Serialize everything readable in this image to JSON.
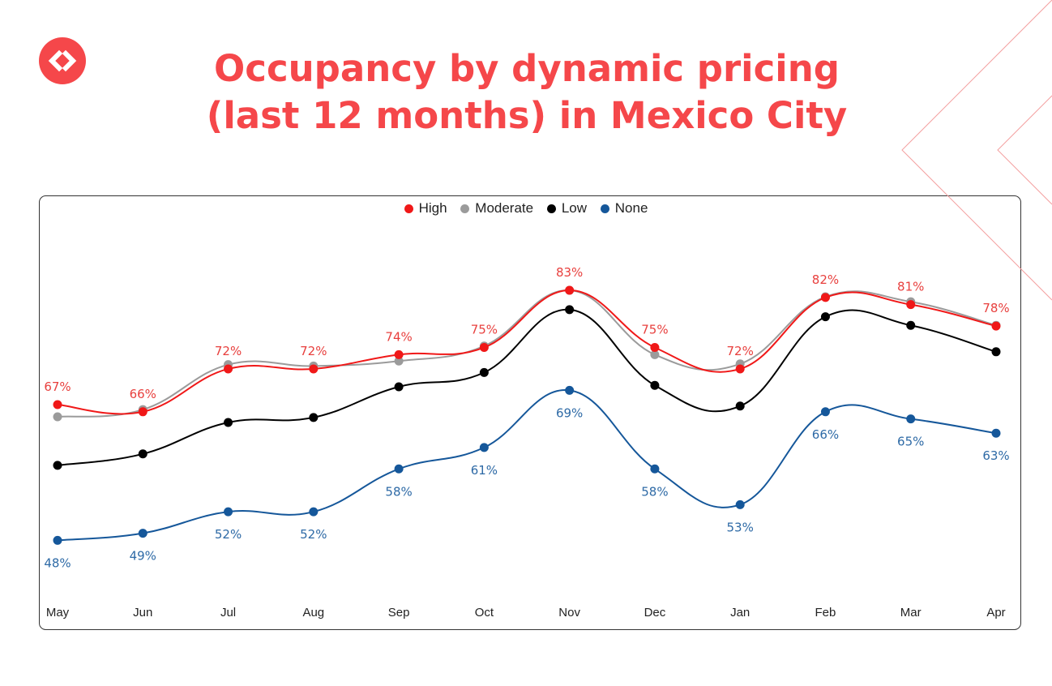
{
  "title": {
    "line1": "Occupancy by dynamic pricing",
    "line2": "(last 12 months) in Mexico City"
  },
  "colors": {
    "accent": "#f5474a",
    "high": "#f01818",
    "moderate": "#9b9b9b",
    "low": "#000000",
    "none": "#15579a",
    "none_label": "#2e6aa6",
    "high_label": "#e8403e"
  },
  "chart_data": {
    "type": "line",
    "title": "Occupancy by dynamic pricing (last 12 months) in Mexico City",
    "xlabel": "",
    "ylabel": "",
    "categories": [
      "May",
      "Jun",
      "Jul",
      "Aug",
      "Sep",
      "Oct",
      "Nov",
      "Dec",
      "Jan",
      "Feb",
      "Mar",
      "Apr"
    ],
    "ylim": [
      40,
      90
    ],
    "grid": false,
    "legend_position": "top-center",
    "series": [
      {
        "name": "High",
        "key": "high",
        "values": [
          67,
          66,
          72,
          72,
          74,
          75,
          83,
          75,
          72,
          82,
          81,
          78
        ],
        "labels": [
          "67%",
          "66%",
          "72%",
          "72%",
          "74%",
          "75%",
          "83%",
          "75%",
          "72%",
          "82%",
          "81%",
          "78%"
        ],
        "label_pos": "above"
      },
      {
        "name": "Moderate",
        "key": "moderate",
        "values": [
          65.3,
          66.3,
          72.6,
          72.4,
          73.1,
          75.2,
          83,
          74,
          72.7,
          82.1,
          81.4,
          78.1
        ]
      },
      {
        "name": "Low",
        "key": "low",
        "values": [
          58.5,
          60.1,
          64.5,
          65.2,
          69.5,
          71.5,
          80.3,
          69.7,
          66.8,
          79.3,
          78.1,
          74.4
        ]
      },
      {
        "name": "None",
        "key": "none",
        "values": [
          48,
          49,
          52,
          52,
          58,
          61,
          69,
          58,
          53,
          66,
          65,
          63
        ],
        "labels": [
          "48%",
          "49%",
          "52%",
          "52%",
          "58%",
          "61%",
          "69%",
          "58%",
          "53%",
          "66%",
          "65%",
          "63%"
        ],
        "label_pos": "below"
      }
    ]
  }
}
